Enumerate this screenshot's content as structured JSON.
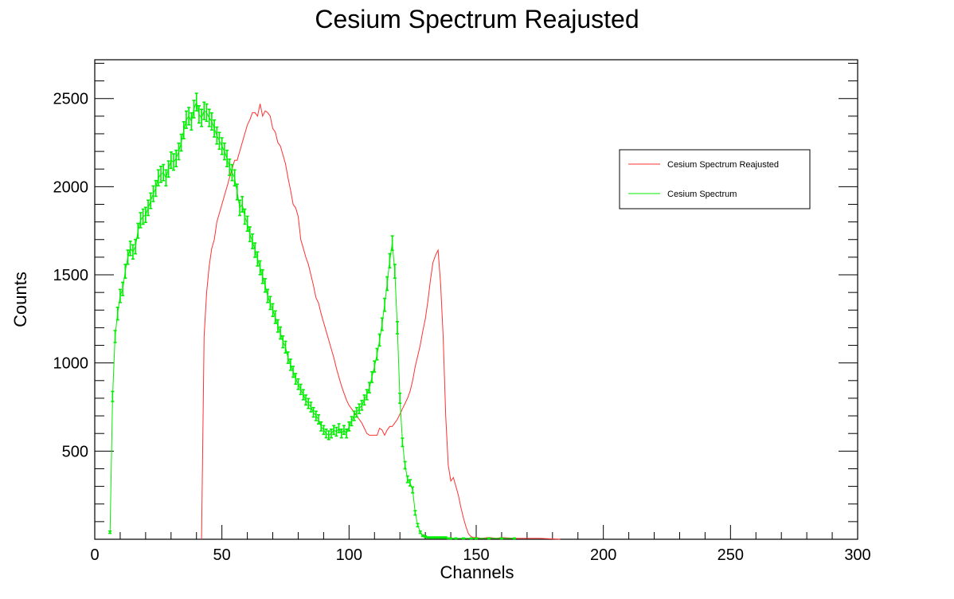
{
  "chart_data": {
    "type": "line",
    "title": "Cesium Spectrum Reajusted",
    "xlabel": "Channels",
    "ylabel": "Counts",
    "xlim": [
      0,
      300
    ],
    "ylim": [
      0,
      2720
    ],
    "x_ticks": [
      0,
      50,
      100,
      150,
      200,
      250,
      300
    ],
    "y_ticks": [
      500,
      1000,
      1500,
      2000,
      2500
    ],
    "x_tick_labels": [
      "0",
      "50",
      "100",
      "150",
      "200",
      "250",
      "300"
    ],
    "y_tick_labels": [
      "500",
      "1000",
      "1500",
      "2000",
      "2500"
    ],
    "grid": false,
    "legend_position": "top-right",
    "legend": [
      {
        "label": "Cesium Spectrum Reajusted",
        "color": "#ff3030"
      },
      {
        "label": "Cesium Spectrum",
        "color": "#00ee00"
      }
    ],
    "series": [
      {
        "name": "Cesium Spectrum Reajusted",
        "color": "#ff3030",
        "error_bars": false,
        "points": [
          [
            42,
            0
          ],
          [
            43,
            1150
          ],
          [
            44,
            1400
          ],
          [
            45,
            1550
          ],
          [
            46,
            1650
          ],
          [
            47,
            1700
          ],
          [
            48,
            1800
          ],
          [
            49,
            1850
          ],
          [
            50,
            1900
          ],
          [
            51,
            1950
          ],
          [
            52,
            2000
          ],
          [
            53,
            2050
          ],
          [
            54,
            2100
          ],
          [
            55,
            2150
          ],
          [
            56,
            2150
          ],
          [
            57,
            2200
          ],
          [
            58,
            2250
          ],
          [
            59,
            2300
          ],
          [
            60,
            2350
          ],
          [
            61,
            2380
          ],
          [
            62,
            2420
          ],
          [
            63,
            2420
          ],
          [
            64,
            2400
          ],
          [
            65,
            2470
          ],
          [
            66,
            2400
          ],
          [
            67,
            2430
          ],
          [
            68,
            2420
          ],
          [
            69,
            2400
          ],
          [
            70,
            2330
          ],
          [
            71,
            2310
          ],
          [
            72,
            2250
          ],
          [
            73,
            2230
          ],
          [
            74,
            2180
          ],
          [
            75,
            2130
          ],
          [
            76,
            2050
          ],
          [
            77,
            1980
          ],
          [
            78,
            1900
          ],
          [
            79,
            1880
          ],
          [
            80,
            1830
          ],
          [
            81,
            1700
          ],
          [
            82,
            1650
          ],
          [
            83,
            1600
          ],
          [
            84,
            1560
          ],
          [
            85,
            1500
          ],
          [
            86,
            1440
          ],
          [
            87,
            1370
          ],
          [
            88,
            1340
          ],
          [
            89,
            1280
          ],
          [
            90,
            1230
          ],
          [
            91,
            1180
          ],
          [
            92,
            1130
          ],
          [
            93,
            1080
          ],
          [
            94,
            1030
          ],
          [
            95,
            970
          ],
          [
            96,
            920
          ],
          [
            97,
            870
          ],
          [
            98,
            830
          ],
          [
            99,
            790
          ],
          [
            100,
            760
          ],
          [
            101,
            740
          ],
          [
            102,
            720
          ],
          [
            103,
            700
          ],
          [
            104,
            680
          ],
          [
            105,
            660
          ],
          [
            106,
            630
          ],
          [
            107,
            600
          ],
          [
            108,
            590
          ],
          [
            109,
            590
          ],
          [
            110,
            590
          ],
          [
            111,
            590
          ],
          [
            112,
            630
          ],
          [
            113,
            620
          ],
          [
            114,
            590
          ],
          [
            115,
            620
          ],
          [
            116,
            640
          ],
          [
            117,
            640
          ],
          [
            118,
            660
          ],
          [
            119,
            680
          ],
          [
            120,
            710
          ],
          [
            121,
            740
          ],
          [
            122,
            770
          ],
          [
            123,
            800
          ],
          [
            124,
            840
          ],
          [
            125,
            900
          ],
          [
            126,
            980
          ],
          [
            127,
            1040
          ],
          [
            128,
            1100
          ],
          [
            129,
            1180
          ],
          [
            130,
            1250
          ],
          [
            131,
            1350
          ],
          [
            132,
            1470
          ],
          [
            133,
            1570
          ],
          [
            134,
            1610
          ],
          [
            135,
            1640
          ],
          [
            136,
            1450
          ],
          [
            137,
            1150
          ],
          [
            138,
            700
          ],
          [
            139,
            420
          ],
          [
            140,
            330
          ],
          [
            141,
            350
          ],
          [
            142,
            300
          ],
          [
            143,
            250
          ],
          [
            144,
            180
          ],
          [
            145,
            120
          ],
          [
            146,
            70
          ],
          [
            147,
            30
          ],
          [
            148,
            15
          ],
          [
            149,
            10
          ],
          [
            150,
            10
          ],
          [
            152,
            5
          ],
          [
            155,
            10
          ],
          [
            158,
            5
          ],
          [
            160,
            10
          ],
          [
            165,
            5
          ],
          [
            170,
            5
          ],
          [
            175,
            5
          ],
          [
            183,
            0
          ]
        ]
      },
      {
        "name": "Cesium Spectrum",
        "color": "#00ee00",
        "error_bars": true,
        "points": [
          [
            6,
            40
          ],
          [
            7,
            810
          ],
          [
            8,
            1150
          ],
          [
            9,
            1280
          ],
          [
            10,
            1380
          ],
          [
            11,
            1420
          ],
          [
            12,
            1520
          ],
          [
            13,
            1600
          ],
          [
            14,
            1650
          ],
          [
            15,
            1630
          ],
          [
            16,
            1660
          ],
          [
            17,
            1750
          ],
          [
            18,
            1810
          ],
          [
            19,
            1830
          ],
          [
            20,
            1840
          ],
          [
            21,
            1880
          ],
          [
            22,
            1920
          ],
          [
            23,
            1960
          ],
          [
            24,
            1990
          ],
          [
            25,
            2050
          ],
          [
            26,
            2070
          ],
          [
            27,
            2080
          ],
          [
            28,
            2050
          ],
          [
            29,
            2100
          ],
          [
            30,
            2150
          ],
          [
            31,
            2140
          ],
          [
            32,
            2160
          ],
          [
            33,
            2200
          ],
          [
            34,
            2250
          ],
          [
            35,
            2320
          ],
          [
            36,
            2380
          ],
          [
            37,
            2400
          ],
          [
            38,
            2370
          ],
          [
            39,
            2440
          ],
          [
            40,
            2480
          ],
          [
            41,
            2410
          ],
          [
            42,
            2390
          ],
          [
            43,
            2430
          ],
          [
            44,
            2420
          ],
          [
            45,
            2390
          ],
          [
            46,
            2370
          ],
          [
            47,
            2330
          ],
          [
            48,
            2290
          ],
          [
            49,
            2260
          ],
          [
            50,
            2230
          ],
          [
            51,
            2200
          ],
          [
            52,
            2160
          ],
          [
            53,
            2110
          ],
          [
            54,
            2080
          ],
          [
            55,
            2050
          ],
          [
            56,
            1970
          ],
          [
            57,
            1880
          ],
          [
            58,
            1900
          ],
          [
            59,
            1830
          ],
          [
            60,
            1790
          ],
          [
            61,
            1730
          ],
          [
            62,
            1690
          ],
          [
            63,
            1640
          ],
          [
            64,
            1590
          ],
          [
            65,
            1540
          ],
          [
            66,
            1490
          ],
          [
            67,
            1440
          ],
          [
            68,
            1380
          ],
          [
            69,
            1340
          ],
          [
            70,
            1300
          ],
          [
            71,
            1260
          ],
          [
            72,
            1210
          ],
          [
            73,
            1170
          ],
          [
            74,
            1120
          ],
          [
            75,
            1090
          ],
          [
            76,
            1030
          ],
          [
            77,
            990
          ],
          [
            78,
            950
          ],
          [
            79,
            910
          ],
          [
            80,
            880
          ],
          [
            81,
            850
          ],
          [
            82,
            820
          ],
          [
            83,
            790
          ],
          [
            84,
            770
          ],
          [
            85,
            750
          ],
          [
            86,
            720
          ],
          [
            87,
            700
          ],
          [
            88,
            680
          ],
          [
            89,
            640
          ],
          [
            90,
            620
          ],
          [
            91,
            600
          ],
          [
            92,
            590
          ],
          [
            93,
            600
          ],
          [
            94,
            620
          ],
          [
            95,
            610
          ],
          [
            96,
            630
          ],
          [
            97,
            600
          ],
          [
            98,
            620
          ],
          [
            99,
            600
          ],
          [
            100,
            640
          ],
          [
            101,
            670
          ],
          [
            102,
            700
          ],
          [
            103,
            720
          ],
          [
            104,
            740
          ],
          [
            105,
            760
          ],
          [
            106,
            790
          ],
          [
            107,
            820
          ],
          [
            108,
            860
          ],
          [
            109,
            920
          ],
          [
            110,
            980
          ],
          [
            111,
            1050
          ],
          [
            112,
            1130
          ],
          [
            113,
            1220
          ],
          [
            114,
            1330
          ],
          [
            115,
            1450
          ],
          [
            116,
            1580
          ],
          [
            117,
            1680
          ],
          [
            118,
            1520
          ],
          [
            119,
            1200
          ],
          [
            120,
            800
          ],
          [
            121,
            550
          ],
          [
            122,
            420
          ],
          [
            123,
            340
          ],
          [
            124,
            320
          ],
          [
            125,
            280
          ],
          [
            126,
            150
          ],
          [
            127,
            80
          ],
          [
            128,
            40
          ],
          [
            129,
            20
          ],
          [
            130,
            15
          ],
          [
            131,
            10
          ],
          [
            132,
            10
          ],
          [
            133,
            10
          ],
          [
            134,
            10
          ],
          [
            135,
            10
          ],
          [
            136,
            10
          ],
          [
            137,
            10
          ],
          [
            138,
            10
          ],
          [
            139,
            5
          ],
          [
            140,
            5
          ],
          [
            142,
            5
          ],
          [
            145,
            5
          ],
          [
            148,
            5
          ],
          [
            150,
            5
          ],
          [
            155,
            5
          ],
          [
            160,
            5
          ],
          [
            165,
            5
          ]
        ]
      }
    ]
  }
}
